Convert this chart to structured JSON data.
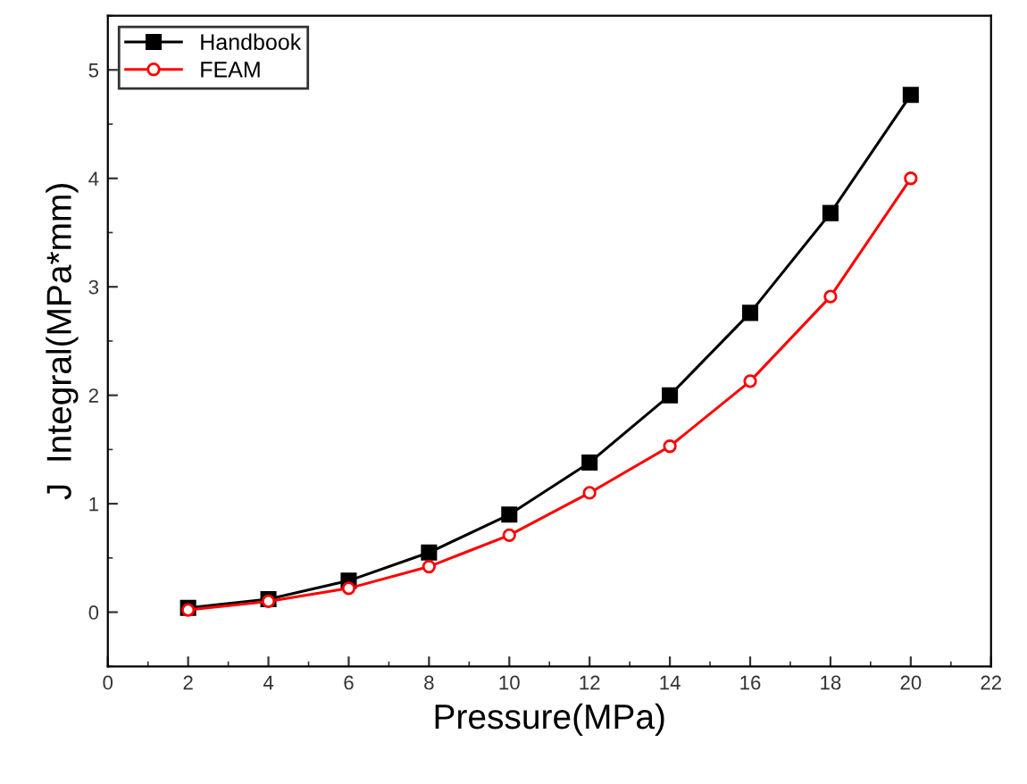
{
  "chart_data": {
    "type": "line",
    "xlabel": "Pressure(MPa)",
    "ylabel": "J  Integral(MPa*mm)",
    "x": [
      2,
      4,
      6,
      8,
      10,
      12,
      14,
      16,
      18,
      20
    ],
    "series": [
      {
        "name": "Handbook",
        "color": "#000000",
        "marker": "square",
        "values": [
          0.04,
          0.12,
          0.29,
          0.55,
          0.9,
          1.38,
          2.0,
          2.76,
          3.68,
          4.77
        ]
      },
      {
        "name": "FEAM",
        "color": "#ff0000",
        "marker": "circle",
        "values": [
          0.02,
          0.1,
          0.22,
          0.42,
          0.71,
          1.1,
          1.53,
          2.13,
          2.91,
          4.0
        ]
      }
    ],
    "xlim": [
      0,
      22
    ],
    "xticks": [
      0,
      2,
      4,
      6,
      8,
      10,
      12,
      14,
      16,
      18,
      20,
      22
    ],
    "ylim": [
      -0.5,
      5.5
    ],
    "yticks": [
      0,
      1,
      2,
      3,
      4,
      5
    ],
    "grid": false,
    "legend": "top left",
    "line_style": "solid"
  }
}
